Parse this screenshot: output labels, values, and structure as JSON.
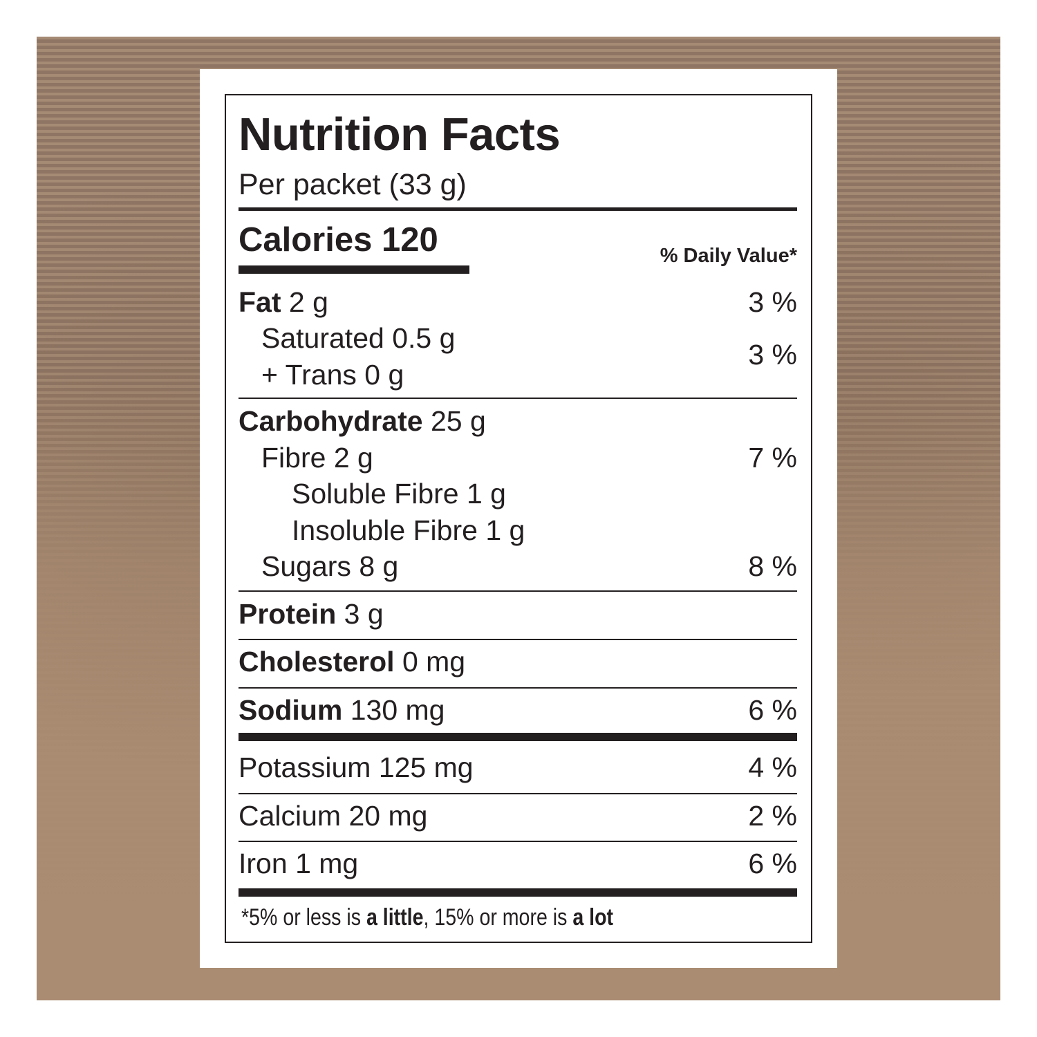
{
  "label": {
    "title": "Nutrition Facts",
    "serving": "Per packet (33 g)",
    "calories_label": "Calories",
    "calories_value": "120",
    "dv_header": "% Daily Value*",
    "rows": [
      {
        "name": "Fat",
        "amount": "2 g",
        "bold": true,
        "indent": 0,
        "dv": "3 %"
      },
      {
        "name": "Saturated",
        "amount": "0.5 g",
        "bold": false,
        "indent": 1,
        "dv": ""
      },
      {
        "name": "+ Trans",
        "amount": "0 g",
        "bold": false,
        "indent": 1,
        "dv": "3 %"
      },
      {
        "name": "Carbohydrate",
        "amount": "25 g",
        "bold": true,
        "indent": 0,
        "dv": ""
      },
      {
        "name": "Fibre",
        "amount": "2 g",
        "bold": false,
        "indent": 1,
        "dv": "7 %"
      },
      {
        "name": "Soluble Fibre",
        "amount": "1 g",
        "bold": false,
        "indent": 2,
        "dv": ""
      },
      {
        "name": "Insoluble Fibre",
        "amount": "1 g",
        "bold": false,
        "indent": 2,
        "dv": ""
      },
      {
        "name": "Sugars",
        "amount": "8 g",
        "bold": false,
        "indent": 1,
        "dv": "8 %"
      },
      {
        "name": "Protein",
        "amount": "3 g",
        "bold": true,
        "indent": 0,
        "dv": ""
      },
      {
        "name": "Cholesterol",
        "amount": "0 mg",
        "bold": true,
        "indent": 0,
        "dv": ""
      },
      {
        "name": "Sodium",
        "amount": "130 mg",
        "bold": true,
        "indent": 0,
        "dv": "6 %"
      },
      {
        "name": "Potassium",
        "amount": "125 mg",
        "bold": false,
        "indent": 0,
        "dv": "4 %"
      },
      {
        "name": "Calcium",
        "amount": "20 mg",
        "bold": false,
        "indent": 0,
        "dv": "2 %"
      },
      {
        "name": "Iron",
        "amount": "1 mg",
        "bold": false,
        "indent": 0,
        "dv": "6 %"
      }
    ],
    "footnote": {
      "part1": "*5% or less is ",
      "bold1": "a little",
      "part2": ", 15% or more is ",
      "bold2": "a lot"
    }
  },
  "colors": {
    "ink": "#231f20",
    "kraft": "#ab8d73",
    "panel": "#ffffff"
  }
}
